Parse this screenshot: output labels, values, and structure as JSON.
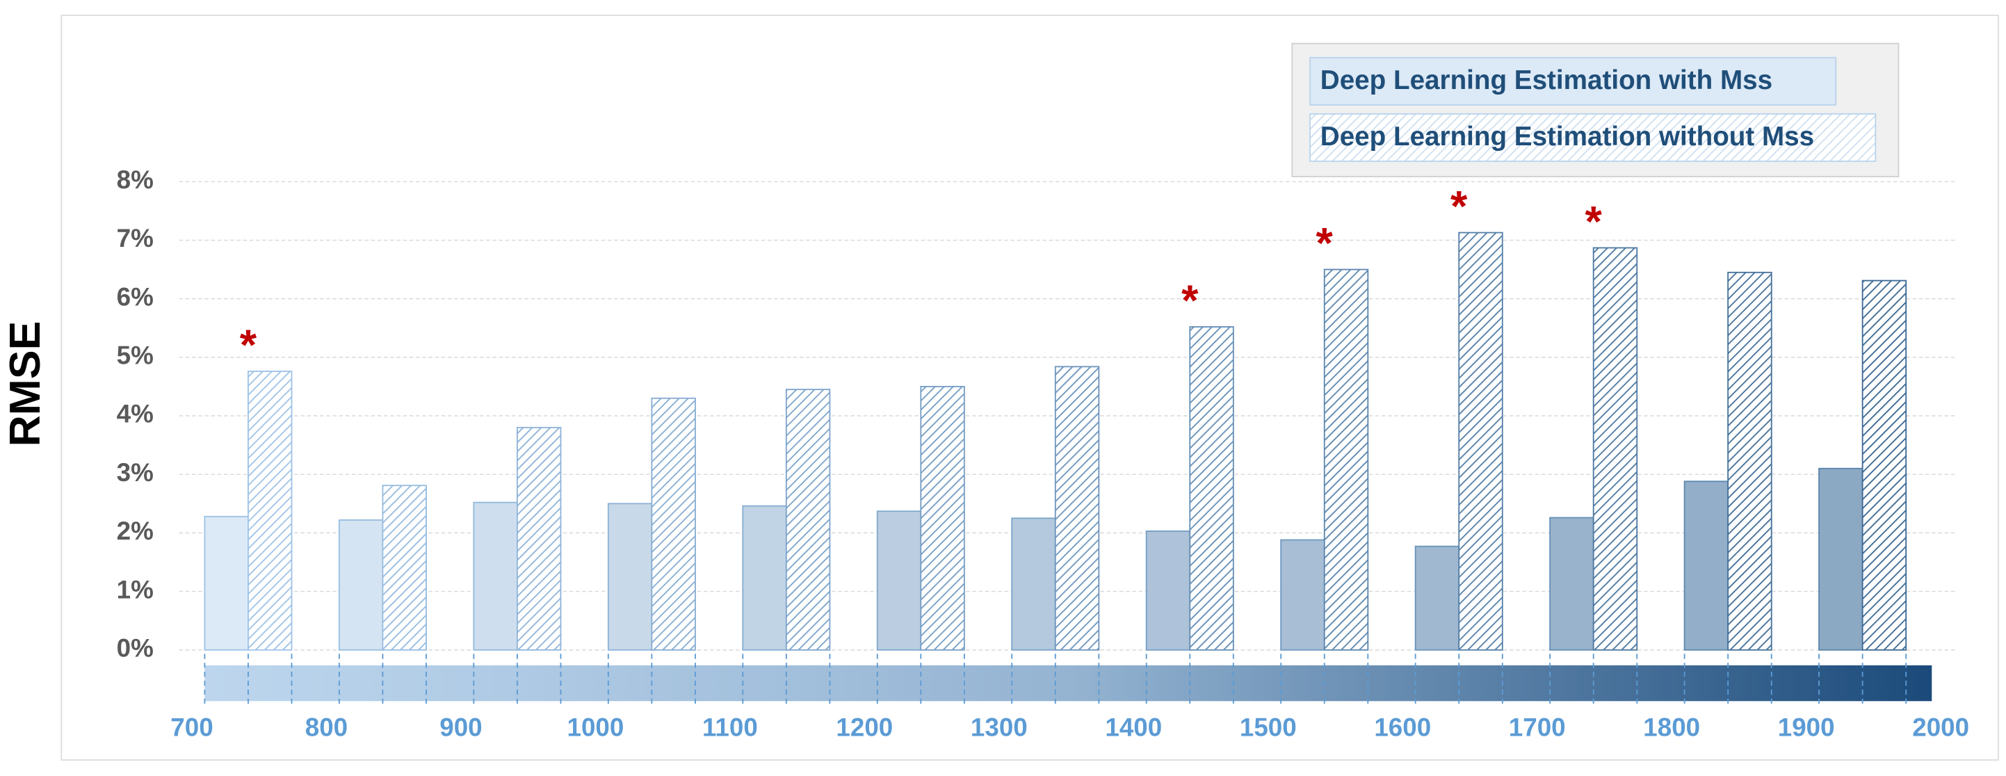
{
  "chart_data": {
    "type": "bar",
    "y_label": "RMSE",
    "xlim": [
      700,
      2000
    ],
    "xticks": [
      700,
      800,
      900,
      1000,
      1100,
      1200,
      1300,
      1400,
      1500,
      1600,
      1700,
      1800,
      1900,
      2000
    ],
    "ylim": [
      0,
      8
    ],
    "yticks": [
      {
        "value": 0,
        "label": "0%"
      },
      {
        "value": 1,
        "label": "1%"
      },
      {
        "value": 2,
        "label": "2%"
      },
      {
        "value": 3,
        "label": "3%"
      },
      {
        "value": 4,
        "label": "4%"
      },
      {
        "value": 5,
        "label": "5%"
      },
      {
        "value": 6,
        "label": "6%"
      },
      {
        "value": 7,
        "label": "7%"
      },
      {
        "value": 8,
        "label": "8%"
      }
    ],
    "grid": true,
    "legend": "top-right",
    "series": [
      {
        "name": "Deep Learning Estimation with Mss",
        "color": "#dce9f6",
        "hatch": false,
        "values": [
          2.28,
          2.22,
          2.52,
          2.5,
          2.46,
          2.37,
          2.25,
          2.03,
          1.88,
          1.77,
          2.26,
          2.88,
          3.1
        ]
      },
      {
        "name": "Deep Learning Estimation without Mss",
        "color": "#9fc3e7",
        "hatch": true,
        "values": [
          4.76,
          2.81,
          3.8,
          4.3,
          4.45,
          4.5,
          4.84,
          5.52,
          6.5,
          7.13,
          6.87,
          6.45,
          6.31
        ]
      }
    ],
    "significance_marker": "*",
    "significant": [
      true,
      false,
      false,
      false,
      false,
      false,
      false,
      true,
      true,
      true,
      true,
      false,
      false
    ]
  }
}
